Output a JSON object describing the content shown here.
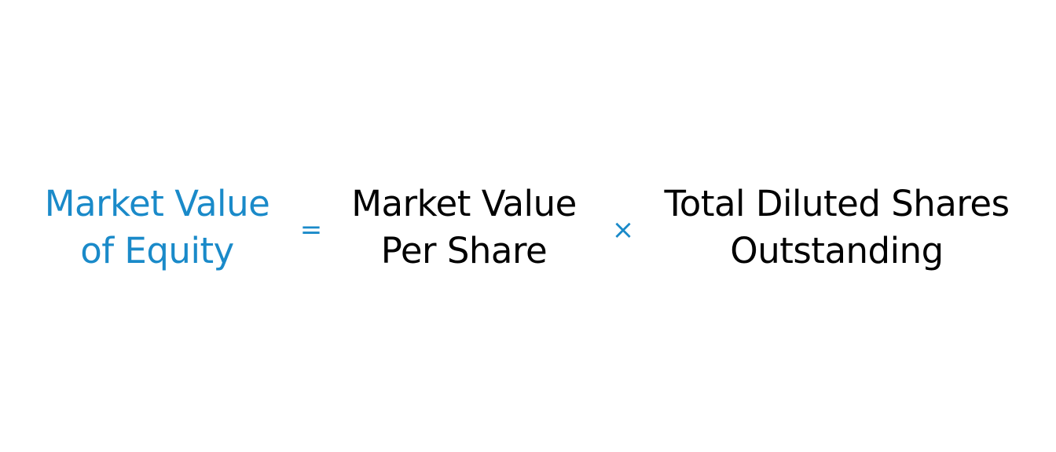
{
  "colors": {
    "accent": "#1a8ac9",
    "text": "#000000",
    "background": "#ffffff"
  },
  "formula": {
    "result": {
      "line1": "Market Value",
      "line2": "of Equity"
    },
    "equals": "=",
    "term_a": {
      "line1": "Market Value",
      "line2": "Per Share"
    },
    "times": "×",
    "term_b": {
      "line1": "Total Diluted Shares",
      "line2": "Outstanding"
    }
  }
}
